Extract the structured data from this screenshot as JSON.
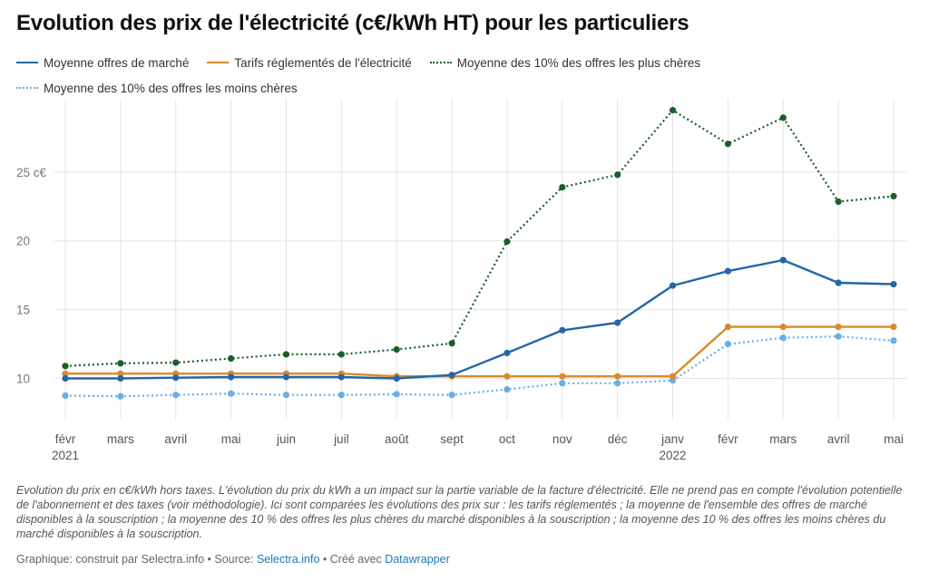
{
  "title": "Evolution des prix de l'électricité (c€/kWh HT) pour les particuliers",
  "colors": {
    "market": "#2266a8",
    "regulated": "#d98a2b",
    "top10": "#1a5f2a",
    "bottom10": "#6aaee6",
    "grid": "#e4e4e4",
    "axis_text": "#777777",
    "link": "#1a7ab8"
  },
  "chart_data": {
    "type": "line",
    "title": "Evolution des prix de l'électricité (c€/kWh HT) pour les particuliers",
    "xlabel": "",
    "ylabel": "c€/kWh HT",
    "ylim": [
      7.2,
      29.8
    ],
    "yticks": [
      10,
      15,
      20,
      25
    ],
    "ytick_labels": [
      "10",
      "15",
      "20",
      "25 c€"
    ],
    "grid": true,
    "categories": [
      "févr",
      "mars",
      "avril",
      "mai",
      "juin",
      "juil",
      "août",
      "sept",
      "oct",
      "nov",
      "déc",
      "janv",
      "févr",
      "mars",
      "avril",
      "mai"
    ],
    "year_labels": [
      {
        "index": 0,
        "label": "2021"
      },
      {
        "index": 11,
        "label": "2022"
      }
    ],
    "series": [
      {
        "key": "market",
        "name": "Moyenne offres de marché",
        "style": "solid",
        "values": [
          10.0,
          10.0,
          10.05,
          10.1,
          10.1,
          10.1,
          10.0,
          10.25,
          11.85,
          13.5,
          14.05,
          16.75,
          17.8,
          18.6,
          16.95,
          16.85
        ]
      },
      {
        "key": "regulated",
        "name": "Tarifs réglementés de l'électricité",
        "style": "solid",
        "values": [
          10.35,
          10.35,
          10.35,
          10.35,
          10.35,
          10.35,
          10.15,
          10.15,
          10.15,
          10.15,
          10.15,
          10.15,
          13.75,
          13.75,
          13.75,
          13.75
        ]
      },
      {
        "key": "top10",
        "name": "Moyenne des 10% des offres les plus chères",
        "style": "dotted",
        "values": [
          10.9,
          11.1,
          11.15,
          11.45,
          11.75,
          11.75,
          12.1,
          12.55,
          19.95,
          23.9,
          24.8,
          29.5,
          27.05,
          28.95,
          22.85,
          23.25
        ]
      },
      {
        "key": "bottom10",
        "name": "Moyenne des 10% des offres les moins chères",
        "style": "dotted",
        "values": [
          8.75,
          8.7,
          8.8,
          8.9,
          8.8,
          8.8,
          8.85,
          8.8,
          9.2,
          9.65,
          9.65,
          9.85,
          12.5,
          12.95,
          13.05,
          12.75
        ]
      }
    ]
  },
  "note": "Evolution du prix en c€/kWh hors taxes. L'évolution du prix du kWh a un impact sur la partie variable de la facture d'électricité. Elle ne prend pas en compte l'évolution potentielle de l'abonnement et des taxes (voir méthodologie). Ici sont comparées les évolutions des prix sur : les tarifs réglementés ; la moyenne de l'ensemble des offres de marché disponibles à la souscription ; la moyenne des 10 % des offres les plus chères du marché disponibles à la souscription ; la moyenne des 10 % des offres les moins chères du marché disponibles à la souscription.",
  "footer": {
    "prefix": "Graphique: construit par Selectra.info • Source: ",
    "source_link": "Selectra.info",
    "middle": " • Créé avec ",
    "tool_link": "Datawrapper"
  }
}
